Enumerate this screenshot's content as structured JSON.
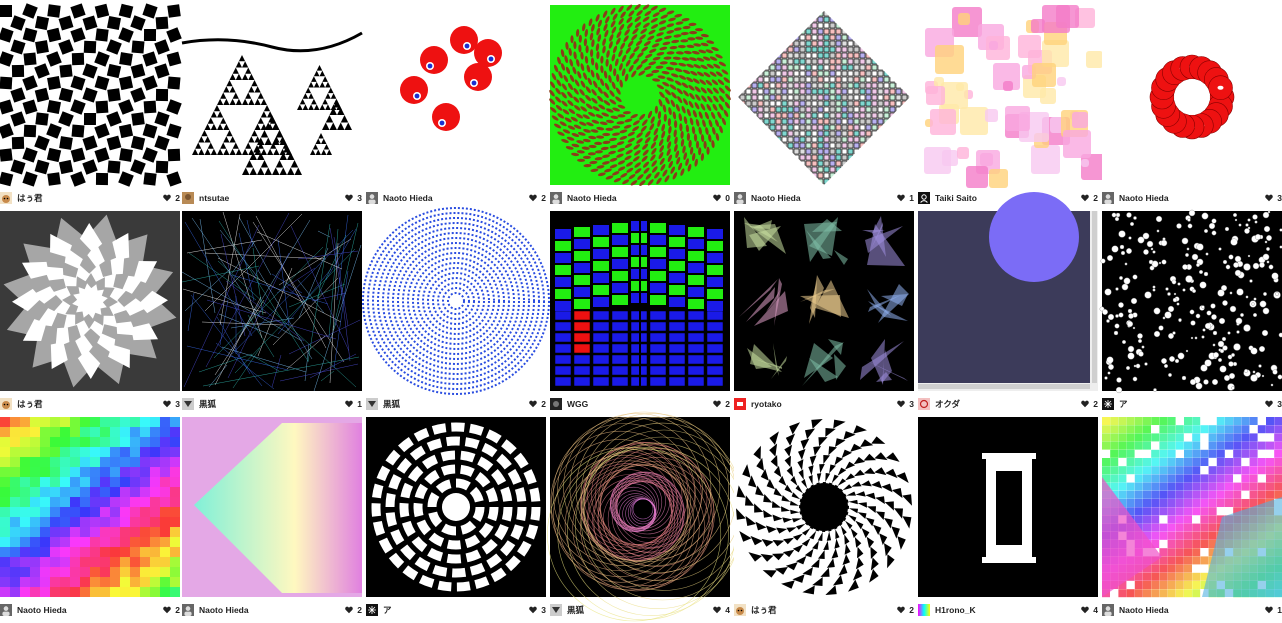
{
  "gallery": {
    "items": [
      {
        "author": "はぅ君",
        "likes": "2",
        "avatar": "cat-avatar-icon",
        "art": "checker"
      },
      {
        "author": "ntsutae",
        "likes": "3",
        "avatar": "photo-avatar-icon",
        "art": "sierpinski"
      },
      {
        "author": "Naoto Hieda",
        "likes": "2",
        "avatar": "person-avatar-icon",
        "art": "red-balls"
      },
      {
        "author": "Naoto Hieda",
        "likes": "0",
        "avatar": "person-avatar-icon",
        "art": "green-spiral"
      },
      {
        "author": "Naoto Hieda",
        "likes": "1",
        "avatar": "person-avatar-icon",
        "art": "diamond-fractal"
      },
      {
        "author": "Taiki Saito",
        "likes": "2",
        "avatar": "user-outline-avatar-icon",
        "art": "pink-squares"
      },
      {
        "author": "Naoto Hieda",
        "likes": "3",
        "avatar": "person-avatar-icon",
        "art": "red-ring"
      },
      {
        "author": "はぅ君",
        "likes": "3",
        "avatar": "cat-avatar-icon",
        "art": "gray-star"
      },
      {
        "author": "黒狐",
        "likes": "1",
        "avatar": "fox-avatar-icon",
        "art": "blue-lines"
      },
      {
        "author": "黒狐",
        "likes": "2",
        "avatar": "fox-avatar-icon",
        "art": "blue-mandala"
      },
      {
        "author": "WGG",
        "likes": "2",
        "avatar": "dark-avatar-icon",
        "art": "blue-bars-3d"
      },
      {
        "author": "ryotako",
        "likes": "3",
        "avatar": "red-avatar-icon",
        "art": "triangles"
      },
      {
        "author": "オクダ",
        "likes": "2",
        "avatar": "spiral-avatar-icon",
        "art": "purple-circle"
      },
      {
        "author": "ア",
        "likes": "3",
        "avatar": "star-avatar-icon",
        "art": "white-dots"
      },
      {
        "author": "Naoto Hieda",
        "likes": "2",
        "avatar": "person-avatar-icon",
        "art": "rainbow-noise"
      },
      {
        "author": "Naoto Hieda",
        "likes": "2",
        "avatar": "person-avatar-icon",
        "art": "gradient-pyramid"
      },
      {
        "author": "ア",
        "likes": "3",
        "avatar": "star-avatar-icon",
        "art": "concentric-blocks"
      },
      {
        "author": "黒狐",
        "likes": "4",
        "avatar": "fox-avatar-icon",
        "art": "spiral-lines"
      },
      {
        "author": "はぅ君",
        "likes": "2",
        "avatar": "cat-avatar-icon",
        "art": "vortex"
      },
      {
        "author": "H1rono_K",
        "likes": "4",
        "avatar": "rainbow-avatar-icon",
        "art": "white-frame"
      },
      {
        "author": "Naoto Hieda",
        "likes": "1",
        "avatar": "person-avatar-icon",
        "art": "colorful-fractal"
      }
    ],
    "heart_icon": "heart-icon",
    "colors": {
      "text": "#222222",
      "heart": "#222222",
      "green": "#22ee11",
      "red": "#ee1111",
      "purple": "#7b6cf6"
    }
  }
}
